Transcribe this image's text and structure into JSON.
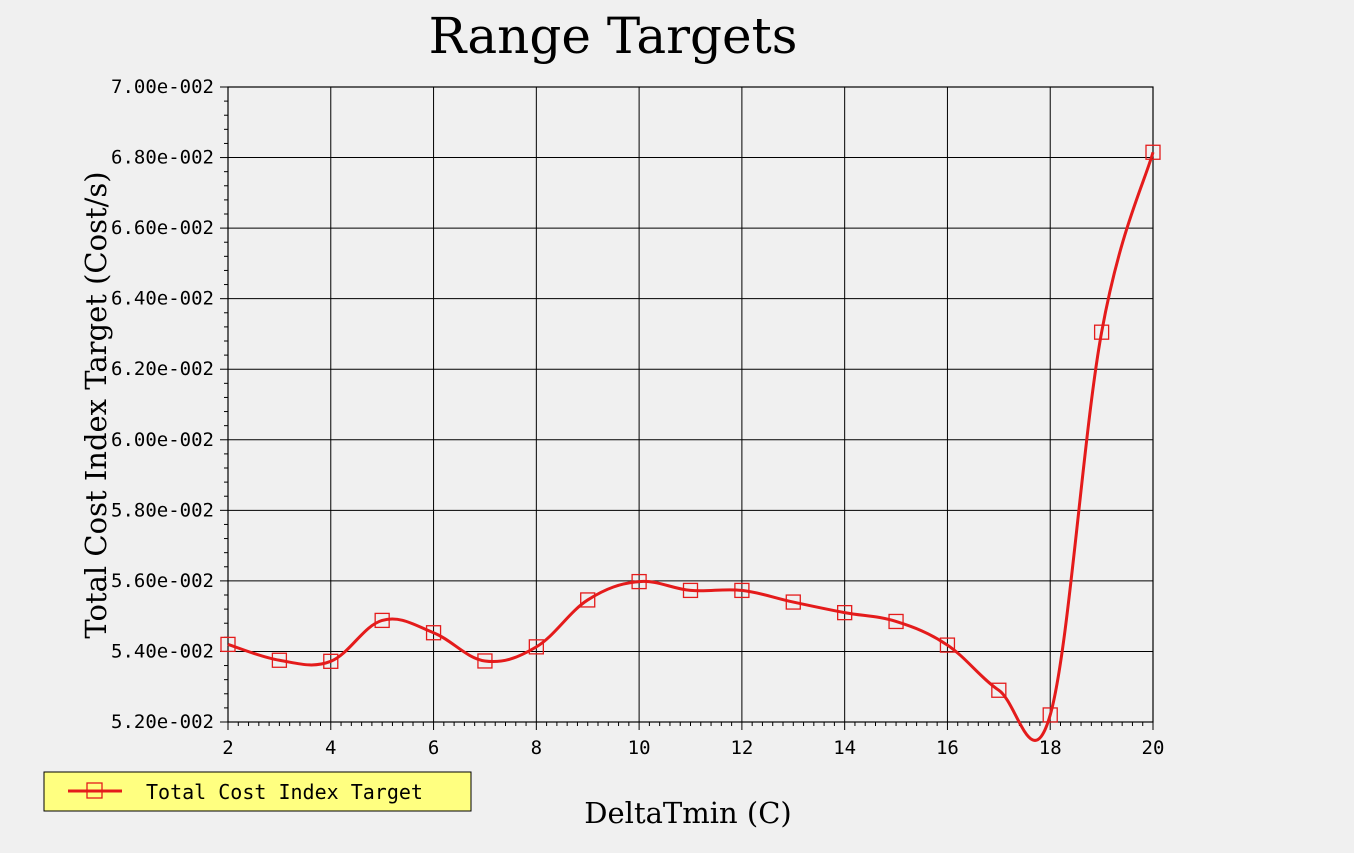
{
  "colors": {
    "background": "#f0f0f0",
    "grid": "#000000",
    "series": "#e41b1b",
    "legend_fill": "#ffff80"
  },
  "chart_data": {
    "type": "line",
    "title": "Range Targets",
    "xlabel": "DeltaTmin (C)",
    "ylabel": "Total Cost Index Target (Cost/s)",
    "xlim": [
      2,
      20
    ],
    "ylim": [
      0.052,
      0.07
    ],
    "x_ticks": [
      2,
      4,
      6,
      8,
      10,
      12,
      14,
      16,
      18,
      20
    ],
    "x_tick_labels": [
      "2",
      "4",
      "6",
      "8",
      "10",
      "12",
      "14",
      "16",
      "18",
      "20"
    ],
    "y_ticks": [
      0.052,
      0.054,
      0.056,
      0.058,
      0.06,
      0.062,
      0.064,
      0.066,
      0.068,
      0.07
    ],
    "y_tick_labels": [
      "5.20e-002",
      "5.40e-002",
      "5.60e-002",
      "5.80e-002",
      "6.00e-002",
      "6.20e-002",
      "6.40e-002",
      "6.60e-002",
      "6.80e-002",
      "7.00e-002"
    ],
    "grid": true,
    "legend_position": "bottom-left",
    "marker": "open-square",
    "series": [
      {
        "name": "Total Cost Index Target",
        "x": [
          2,
          3,
          4,
          5,
          6,
          7,
          8,
          9,
          10,
          11,
          12,
          13,
          14,
          15,
          16,
          17,
          18,
          19,
          20
        ],
        "y": [
          0.0542,
          0.05375,
          0.05372,
          0.05488,
          0.05453,
          0.05373,
          0.05413,
          0.05546,
          0.05598,
          0.05573,
          0.05573,
          0.0554,
          0.0551,
          0.05485,
          0.05418,
          0.0529,
          0.0522,
          0.06305,
          0.06815
        ]
      }
    ]
  }
}
